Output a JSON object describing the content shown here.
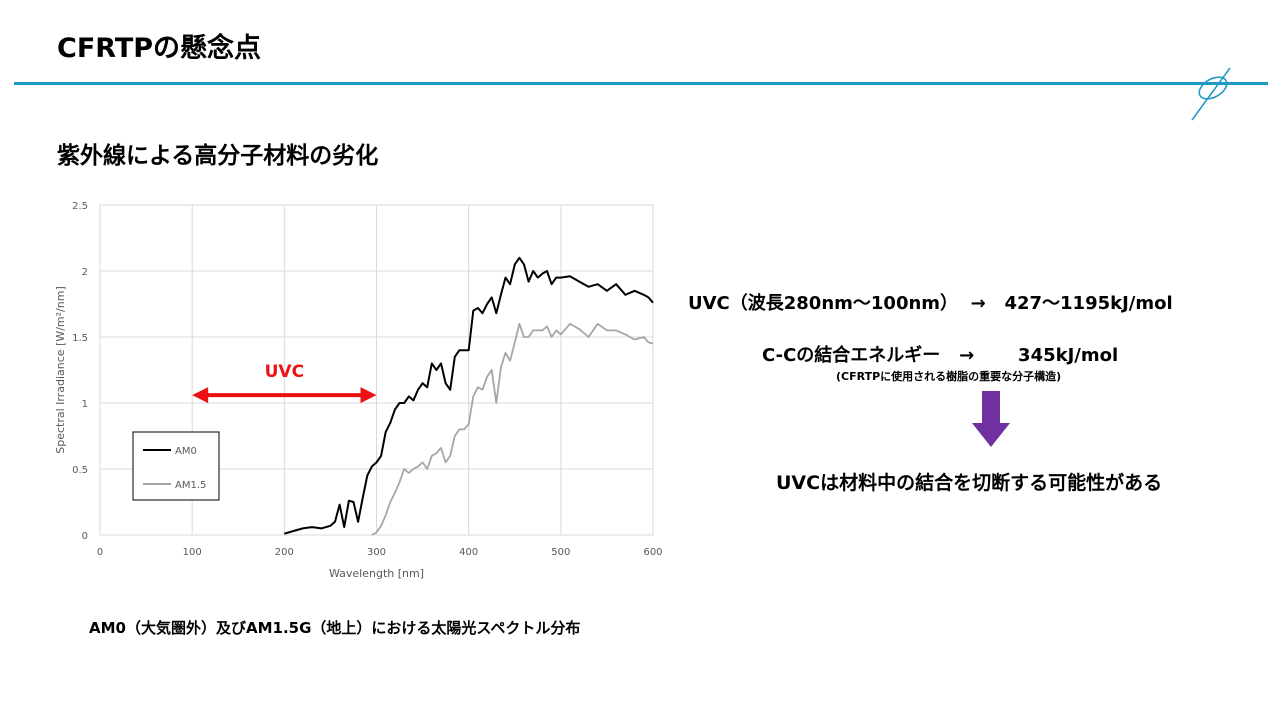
{
  "slide": {
    "title": "CFRTPの懸念点",
    "heading": "紫外線による高分子材料の劣化",
    "caption": "AM0（大気圏外）及びAM1.5G（地上）における太陽光スペクトル分布",
    "uvc_line": "UVC（波長280nm～100nm）  →   427～1195kJ/mol",
    "cc_line": "C-Cの結合エネルギー   →       345kJ/mol",
    "cc_note": "(CFRTPに使用される樹脂の重要な分子構造)",
    "conclusion": "UVCは材料中の結合を切断する可能性がある",
    "colors": {
      "accent_rule": "#1e9bc4",
      "uvc_arrow": "#ee1111",
      "down_arrow": "#7030a0"
    }
  },
  "chart_data": {
    "type": "line",
    "xlabel": "Wavelength [nm]",
    "ylabel": "Spectral Irradiance [W/m²/nm]",
    "xlim": [
      0,
      600
    ],
    "ylim": [
      0,
      2.5
    ],
    "xticks": [
      0,
      100,
      200,
      300,
      400,
      500,
      600
    ],
    "yticks": [
      0,
      0.5,
      1,
      1.5,
      2,
      2.5
    ],
    "ytick_labels": [
      "0",
      "0.5",
      "1",
      "1.5",
      "2",
      "2.5"
    ],
    "grid": true,
    "legend": "lower-left",
    "annotation": {
      "text": "UVC",
      "x_from": 100,
      "x_to": 300,
      "y": 1.06
    },
    "series": [
      {
        "name": "AM0",
        "color": "#000000",
        "x": [
          200,
          210,
          220,
          230,
          240,
          250,
          255,
          260,
          265,
          270,
          275,
          280,
          285,
          290,
          295,
          300,
          305,
          310,
          315,
          320,
          325,
          330,
          335,
          340,
          345,
          350,
          355,
          360,
          365,
          370,
          375,
          380,
          385,
          390,
          395,
          400,
          405,
          410,
          415,
          420,
          425,
          430,
          435,
          440,
          445,
          450,
          455,
          460,
          465,
          470,
          475,
          480,
          485,
          490,
          495,
          500,
          510,
          520,
          530,
          540,
          550,
          560,
          570,
          580,
          590,
          595,
          600
        ],
        "y": [
          0.01,
          0.03,
          0.05,
          0.06,
          0.05,
          0.07,
          0.1,
          0.23,
          0.06,
          0.26,
          0.25,
          0.1,
          0.28,
          0.45,
          0.52,
          0.55,
          0.6,
          0.78,
          0.85,
          0.95,
          1.0,
          1.0,
          1.05,
          1.02,
          1.1,
          1.15,
          1.12,
          1.3,
          1.25,
          1.3,
          1.15,
          1.1,
          1.35,
          1.4,
          1.4,
          1.4,
          1.7,
          1.72,
          1.68,
          1.75,
          1.8,
          1.68,
          1.82,
          1.95,
          1.9,
          2.05,
          2.1,
          2.05,
          1.92,
          2.0,
          1.95,
          1.98,
          2.0,
          1.9,
          1.95,
          1.95,
          1.96,
          1.92,
          1.88,
          1.9,
          1.85,
          1.9,
          1.82,
          1.85,
          1.82,
          1.8,
          1.76
        ]
      },
      {
        "name": "AM1.5",
        "color": "#a6a6a6",
        "x": [
          295,
          300,
          305,
          310,
          315,
          320,
          325,
          330,
          335,
          340,
          345,
          350,
          355,
          360,
          365,
          370,
          375,
          380,
          385,
          390,
          395,
          400,
          405,
          410,
          415,
          420,
          425,
          430,
          435,
          440,
          445,
          450,
          455,
          460,
          465,
          470,
          475,
          480,
          485,
          490,
          495,
          500,
          510,
          520,
          530,
          540,
          550,
          560,
          570,
          580,
          590,
          595,
          600
        ],
        "y": [
          0.0,
          0.02,
          0.07,
          0.15,
          0.25,
          0.32,
          0.4,
          0.5,
          0.47,
          0.5,
          0.52,
          0.55,
          0.5,
          0.6,
          0.62,
          0.66,
          0.55,
          0.6,
          0.75,
          0.8,
          0.8,
          0.84,
          1.05,
          1.12,
          1.1,
          1.2,
          1.25,
          1.0,
          1.27,
          1.38,
          1.32,
          1.46,
          1.6,
          1.5,
          1.5,
          1.55,
          1.55,
          1.55,
          1.58,
          1.5,
          1.55,
          1.52,
          1.6,
          1.56,
          1.5,
          1.6,
          1.55,
          1.55,
          1.52,
          1.48,
          1.5,
          1.46,
          1.45
        ]
      }
    ]
  }
}
